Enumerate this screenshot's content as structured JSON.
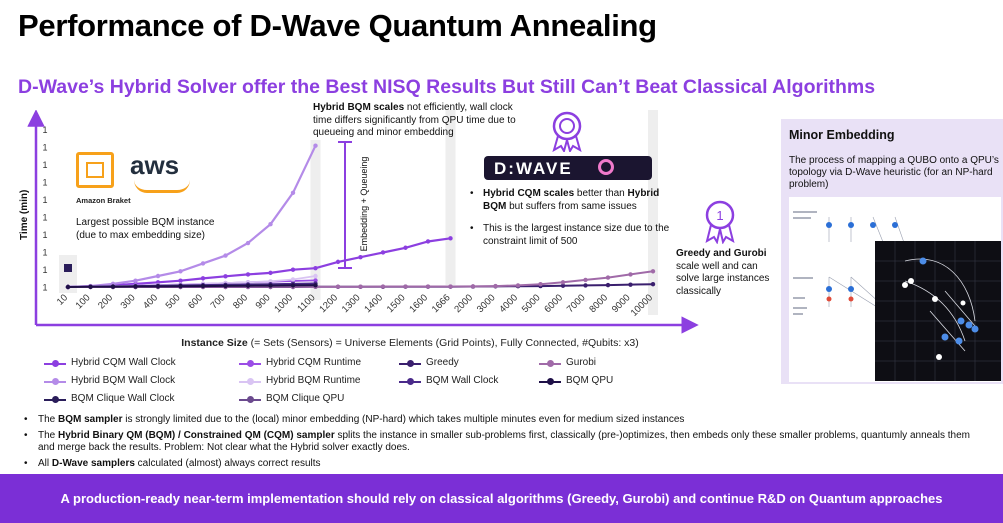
{
  "title": "Performance of D-Wave Quantum Annealing",
  "subtitle": "D-Wave’s Hybrid Solver offer the Best NISQ Results But Still Can’t Beat Classical Algorithms",
  "annotations": {
    "hybrid_bqm_bold": "Hybrid BQM scales",
    "hybrid_bqm_rest": " not efficiently, wall clock time differs significantly from QPU time due to queueing and minor embedding",
    "embedding_queueing": "Embedding + Queueing",
    "aws_word": "aws",
    "aws_label": "Amazon Braket",
    "largest_bqm": "Largest possible BQM instance (due to max embedding size)",
    "dwave_logo": "D:WAVE",
    "cqm_b1": "Hybrid CQM scales",
    "cqm_m1": " better than ",
    "cqm_b2": "Hybrid BQM",
    "cqm_m2": " but suffers from same issues",
    "cqm_largest": "This is the largest instance size due to the constraint limit of 500",
    "greedy_bold": "Greedy and Gurobi",
    "greedy_rest": " scale well and can solve large instances classically",
    "badge_number": "1"
  },
  "right_panel": {
    "title": "Minor Embedding",
    "text": "The process of mapping a QUBO onto a QPU’s topology via D-Wave heuristic (for an NP-hard problem)"
  },
  "chart_data": {
    "type": "line",
    "categories": [
      "10",
      "100",
      "200",
      "300",
      "400",
      "500",
      "600",
      "700",
      "800",
      "900",
      "1000",
      "1100",
      "1200",
      "1300",
      "1400",
      "1500",
      "1600",
      "1666",
      "2000",
      "3000",
      "4000",
      "5000",
      "6000",
      "7000",
      "8000",
      "9000",
      "10000"
    ],
    "ylabel": "Time (min)",
    "yticks": [
      "1",
      "1",
      "1",
      "1",
      "1",
      "1",
      "1",
      "1",
      "1",
      "1"
    ],
    "xlabel_bold": "Instance Size",
    "xlabel_rest": " (= Sets (Sensors) = Universe Elements (Grid Points), Fully Connected, #Qubits: x3)",
    "ylim": [
      0,
      1
    ],
    "series": [
      {
        "name": "Hybrid CQM Wall Clock",
        "color": "#8c3fe0",
        "width": 2.2,
        "values": [
          0.0,
          0.005,
          0.012,
          0.02,
          0.03,
          0.04,
          0.055,
          0.068,
          0.08,
          0.09,
          0.11,
          0.12,
          0.16,
          0.19,
          0.22,
          0.25,
          0.29,
          0.31,
          null,
          null,
          null,
          null,
          null,
          null,
          null,
          null,
          null
        ]
      },
      {
        "name": "Hybrid BQM Wall Clock",
        "color": "#b48be8",
        "width": 2.2,
        "values": [
          0.0,
          0.006,
          0.02,
          0.04,
          0.07,
          0.1,
          0.15,
          0.2,
          0.28,
          0.4,
          0.6,
          0.9,
          null,
          null,
          null,
          null,
          null,
          null,
          null,
          null,
          null,
          null,
          null,
          null,
          null,
          null,
          null
        ]
      },
      {
        "name": "BQM Clique Wall Clock",
        "color": "#2a1d5a",
        "width": 2,
        "values": [
          0.0,
          null,
          null,
          null,
          null,
          null,
          null,
          null,
          null,
          null,
          null,
          null,
          null,
          null,
          null,
          null,
          null,
          null,
          null,
          null,
          null,
          null,
          null,
          null,
          null,
          null,
          null
        ]
      },
      {
        "name": "Hybrid CQM Runtime",
        "color": "#9b4de6",
        "width": 1.8,
        "values": [
          0.0,
          0.002,
          0.005,
          0.008,
          0.012,
          0.016,
          0.02,
          0.025,
          0.03,
          0.034,
          0.038,
          0.042,
          null,
          null,
          null,
          null,
          null,
          null,
          null,
          null,
          null,
          null,
          null,
          null,
          null,
          null,
          null
        ]
      },
      {
        "name": "Hybrid BQM Runtime",
        "color": "#d9c4f3",
        "width": 1.8,
        "values": [
          0.0,
          0.002,
          0.005,
          0.008,
          0.012,
          0.016,
          0.02,
          0.025,
          0.03,
          0.036,
          0.048,
          0.07,
          null,
          null,
          null,
          null,
          null,
          null,
          null,
          null,
          null,
          null,
          null,
          null,
          null,
          null,
          null
        ]
      },
      {
        "name": "BQM Clique QPU",
        "color": "#6b4a8e",
        "width": 1.8,
        "values": [
          0.0,
          null,
          null,
          null,
          null,
          null,
          null,
          null,
          null,
          null,
          null,
          null,
          null,
          null,
          null,
          null,
          null,
          null,
          null,
          null,
          null,
          null,
          null,
          null,
          null,
          null,
          null
        ]
      },
      {
        "name": "Greedy",
        "color": "#3a1f6e",
        "width": 2,
        "values": [
          0.0,
          0.0,
          0.0,
          0.0,
          0.0,
          0.0,
          0.0,
          0.0,
          0.0,
          0.0,
          0.0,
          0.001,
          0.001,
          0.001,
          0.001,
          0.002,
          0.002,
          0.002,
          0.003,
          0.004,
          0.005,
          0.006,
          0.008,
          0.01,
          0.012,
          0.015,
          0.018
        ]
      },
      {
        "name": "BQM Wall Clock",
        "color": "#4a2a8a",
        "width": 2,
        "values": [
          0.0,
          0.002,
          0.004,
          0.006,
          0.008,
          0.01,
          0.012,
          0.014,
          0.016,
          0.018,
          0.02,
          0.022,
          null,
          null,
          null,
          null,
          null,
          null,
          null,
          null,
          null,
          null,
          null,
          null,
          null,
          null,
          null
        ]
      },
      {
        "name": "Gurobi",
        "color": "#a06aa8",
        "width": 2,
        "values": [
          0.0,
          0.0,
          0.0,
          0.0,
          0.001,
          0.001,
          0.001,
          0.001,
          0.001,
          0.002,
          0.002,
          0.002,
          0.002,
          0.002,
          0.003,
          0.003,
          0.003,
          0.003,
          0.004,
          0.006,
          0.01,
          0.018,
          0.03,
          0.045,
          0.06,
          0.08,
          0.1
        ]
      },
      {
        "name": "BQM QPU",
        "color": "#1f1048",
        "width": 2,
        "values": [
          0.0,
          0.001,
          0.002,
          0.003,
          0.004,
          0.005,
          0.006,
          0.007,
          0.008,
          0.009,
          0.01,
          0.011,
          null,
          null,
          null,
          null,
          null,
          null,
          null,
          null,
          null,
          null,
          null,
          null,
          null,
          null,
          null
        ]
      }
    ],
    "legend_order": [
      0,
      3,
      6,
      8,
      1,
      4,
      7,
      9,
      2,
      5
    ],
    "grid": false,
    "legend_position": "bottom"
  },
  "bullets": [
    {
      "b1": "The ",
      "bold": "BQM sampler",
      "rest": " is strongly limited due to the (local) minor embedding (NP-hard) which takes multiple minutes even for medium sized instances"
    },
    {
      "b1": "The ",
      "bold": "Hybrid Binary QM (BQM) / Constrained QM (CQM) sampler",
      "rest": " splits the instance in smaller sub-problems first, classically (pre-)optimizes, then embeds only these smaller problems, quantumly anneals them and merge back the results. Problem: Not clear what the Hybrid solver exactly does."
    },
    {
      "b1": "All ",
      "bold": "D-Wave samplers",
      "rest": " calculated (almost) always correct results"
    }
  ],
  "footer": "A production-ready near-term implementation should rely on classical algorithms (Greedy, Gurobi) and continue R&D on Quantum approaches"
}
